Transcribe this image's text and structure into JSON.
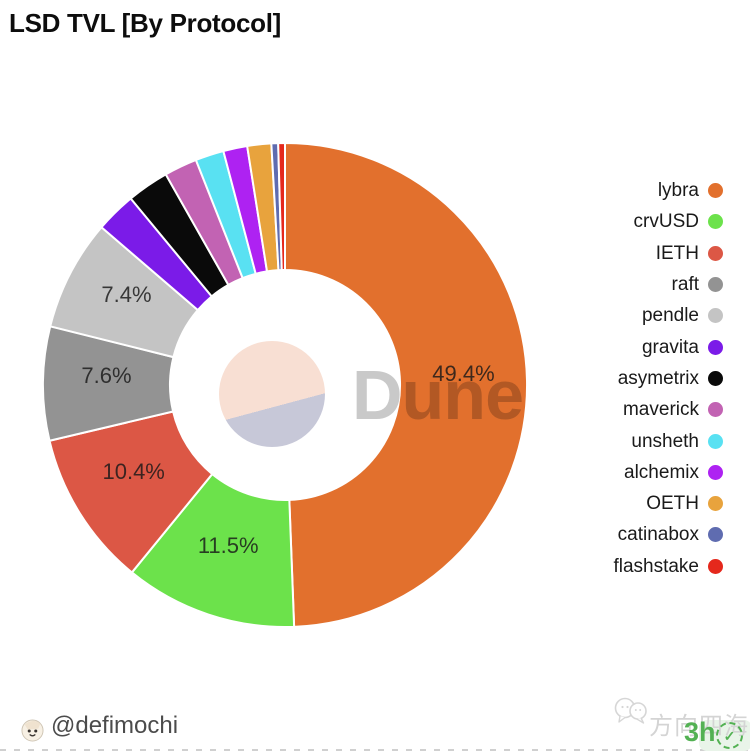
{
  "title": "LSD TVL [By Protocol]",
  "watermark": {
    "logo_text": "Dune",
    "text_color": "#C9C9C9",
    "circle_top_color": "#F8DFD3",
    "circle_bottom_color": "#C7C8D8"
  },
  "chart_data": {
    "type": "pie",
    "donut": true,
    "title": "LSD TVL [By Protocol]",
    "legend_position": "right",
    "units": "percent of TVL",
    "series": [
      {
        "name": "lybra",
        "pct": 49.4,
        "color": "#E2702D",
        "label": "49.4%"
      },
      {
        "name": "crvUSD",
        "pct": 11.5,
        "color": "#6CE24B",
        "label": "11.5%"
      },
      {
        "name": "IETH",
        "pct": 10.4,
        "color": "#DC5745",
        "label": "10.4%"
      },
      {
        "name": "raft",
        "pct": 7.6,
        "color": "#939393",
        "label": "7.6%"
      },
      {
        "name": "pendle",
        "pct": 7.4,
        "color": "#C4C4C4",
        "label": "7.4%"
      },
      {
        "name": "gravita",
        "pct": 2.7,
        "color": "#7B1BE8",
        "label": ""
      },
      {
        "name": "asymetrix",
        "pct": 2.8,
        "color": "#0A0A0A",
        "label": ""
      },
      {
        "name": "maverick",
        "pct": 2.2,
        "color": "#C263B3",
        "label": ""
      },
      {
        "name": "unsheth",
        "pct": 1.9,
        "color": "#59E1F2",
        "label": ""
      },
      {
        "name": "alchemix",
        "pct": 1.6,
        "color": "#AE22F2",
        "label": ""
      },
      {
        "name": "OETH",
        "pct": 1.6,
        "color": "#E8A33D",
        "label": ""
      },
      {
        "name": "catinabox",
        "pct": 0.45,
        "color": "#5F6CB0",
        "label": ""
      },
      {
        "name": "flashstake",
        "pct": 0.45,
        "color": "#E5281C",
        "label": ""
      }
    ]
  },
  "footer": {
    "handle": "@defimochi",
    "stamp_text": "方向四海",
    "badge_time": "3h",
    "badge_check": "✓",
    "badge_green": "#53B153"
  }
}
